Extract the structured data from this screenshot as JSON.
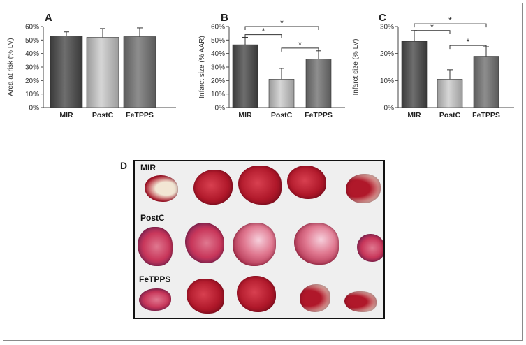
{
  "chart_data": [
    {
      "panel": "A",
      "type": "bar",
      "title": "",
      "xlabel": "",
      "ylabel": "Area at risk (% LV)",
      "categories": [
        "MIR",
        "PostC",
        "FeTPPS"
      ],
      "values": [
        53,
        52,
        52.5
      ],
      "errors": [
        3,
        6.5,
        6.5
      ],
      "ylim": [
        0,
        60
      ],
      "yticks": [
        "0%",
        "10%",
        "20%",
        "30%",
        "40%",
        "50%",
        "60%"
      ],
      "ytick_values": [
        0,
        10,
        20,
        30,
        40,
        50,
        60
      ],
      "significance": []
    },
    {
      "panel": "B",
      "type": "bar",
      "title": "",
      "xlabel": "",
      "ylabel": "Infarct size (% AAR)",
      "categories": [
        "MIR",
        "PostC",
        "FeTPPS"
      ],
      "values": [
        46.5,
        21,
        36
      ],
      "errors": [
        5.5,
        8,
        6
      ],
      "ylim": [
        0,
        60
      ],
      "yticks": [
        "0%",
        "10%",
        "20%",
        "30%",
        "40%",
        "50%",
        "60%"
      ],
      "ytick_values": [
        0,
        10,
        20,
        30,
        40,
        50,
        60
      ],
      "significance": [
        {
          "from": 0,
          "to": 1,
          "label": "*",
          "level": 54
        },
        {
          "from": 0,
          "to": 2,
          "label": "*",
          "level": 60
        },
        {
          "from": 1,
          "to": 2,
          "label": "*",
          "level": 44
        }
      ]
    },
    {
      "panel": "C",
      "type": "bar",
      "title": "",
      "xlabel": "",
      "ylabel": "Infarct size (% LV)",
      "categories": [
        "MIR",
        "PostC",
        "FeTPPS"
      ],
      "values": [
        24.5,
        10.5,
        19
      ],
      "errors": [
        4,
        3.5,
        3.5
      ],
      "ylim": [
        0,
        30
      ],
      "yticks": [
        "0%",
        "10%",
        "20%",
        "30%"
      ],
      "ytick_values": [
        0,
        10,
        20,
        30
      ],
      "significance": [
        {
          "from": 0,
          "to": 1,
          "label": "*",
          "level": 28.5
        },
        {
          "from": 0,
          "to": 2,
          "label": "*",
          "level": 31
        },
        {
          "from": 1,
          "to": 2,
          "label": "*",
          "level": 23
        }
      ]
    }
  ],
  "photo_panel": {
    "letter": "D",
    "groups": [
      "MIR",
      "PostC",
      "FeTPPS"
    ]
  },
  "colors": {
    "bar_MIR": "#555555",
    "bar_PostC": "#b4b4b4",
    "bar_FeTPPS": "#7a7a7a",
    "tissue_red": "#b0182a",
    "tissue_pale": "#f2e6d4",
    "tissue_pink": "#e07890",
    "tissue_purple": "#5a2060"
  }
}
